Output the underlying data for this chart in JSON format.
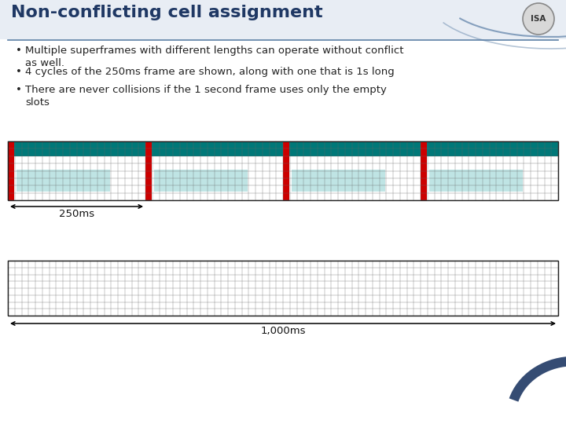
{
  "title": "Non-conflicting cell assignment",
  "bg_color": "#f0f0f0",
  "title_color": "#1f3864",
  "title_fontsize": 16,
  "bullets": [
    "Multiple superframes with different lengths can operate without conflict\nas well.",
    "4 cycles of the 250ms frame are shown, along with one that is 1s long",
    "There are never collisions if the 1 second frame uses only the empty\nslots"
  ],
  "bullet_fontsize": 9.5,
  "frame1_label": "250ms",
  "frame2_label": "1,000ms",
  "teal_dark": "#007878",
  "teal_light": "#aadcdc",
  "red_bar": "#cc0000",
  "grid_color": "#666666",
  "border_color": "#222222",
  "slide_bg": "#f2f2f2",
  "header_bg": "#dde4ef",
  "arc_color": "#5b7fa6",
  "isa_circle_color": "#d8d8d8",
  "isa_text_color": "#333333",
  "navy": "#1f3864"
}
